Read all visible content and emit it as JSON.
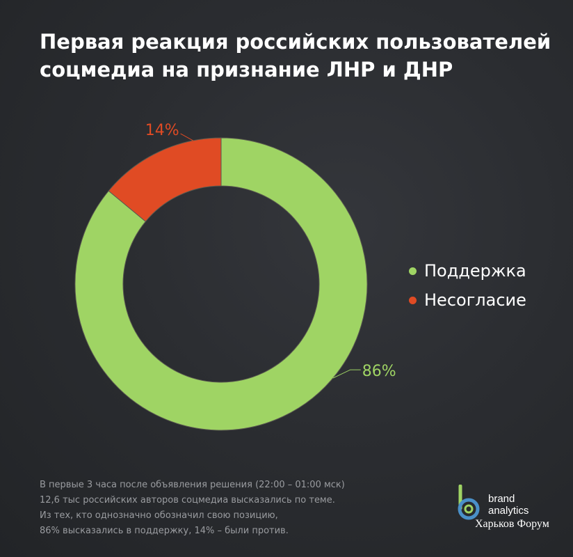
{
  "header": {
    "title_line1": "Первая реакция российских пользователей",
    "title_line2": "соцмедиа на признание ЛНР и ДНР"
  },
  "chart_data": {
    "type": "pie",
    "donut": true,
    "categories": [
      "Поддержка",
      "Несогласие"
    ],
    "values": [
      86,
      14
    ],
    "data_labels": [
      "86%",
      "14%"
    ],
    "colors": [
      "#9fd464",
      "#e04b24"
    ],
    "legend_position": "right"
  },
  "legend": {
    "items": [
      {
        "label": "Поддержка",
        "color": "#9fd464"
      },
      {
        "label": "Несогласие",
        "color": "#e04b24"
      }
    ]
  },
  "footnote": {
    "lines": [
      "В первые 3 часа после объявления решения (22:00 – 01:00 мск)",
      "12,6 тыс российских авторов соцмедиа высказались по теме.",
      "Из тех, кто однозначно обозначил свою позицию,",
      "86% высказались в поддержку, 14% – были против."
    ]
  },
  "logo": {
    "line1": "brand",
    "line2": "analytics",
    "colors": [
      "#4a90c8",
      "#9fd464"
    ]
  },
  "watermark": "Харьков Форум"
}
